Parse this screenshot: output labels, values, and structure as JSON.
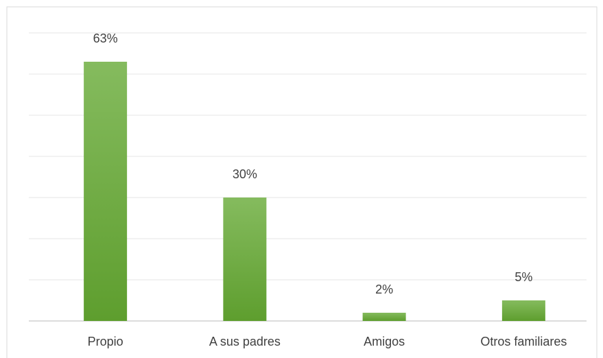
{
  "chart_data": {
    "type": "bar",
    "categories": [
      "Propio",
      "A sus padres",
      "Amigos",
      "Otros familiares"
    ],
    "values": [
      63,
      30,
      2,
      5
    ],
    "value_labels": [
      "63%",
      "30%",
      "2%",
      "5%"
    ],
    "color": "#6aab3c",
    "ylim": [
      0,
      70
    ],
    "yticks": [
      0,
      10,
      20,
      30,
      40,
      50,
      60,
      70
    ],
    "grid": true
  }
}
